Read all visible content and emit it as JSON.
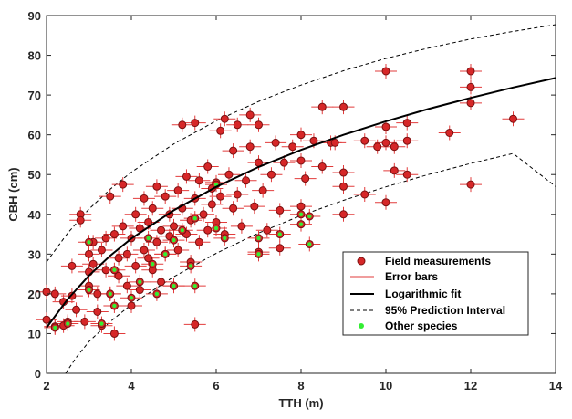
{
  "chart_data": {
    "type": "scatter",
    "xlabel": "TTH (m)",
    "ylabel": "CBH (cm)",
    "xlim": [
      2,
      14
    ],
    "ylim": [
      0,
      90
    ],
    "xticks": [
      "2",
      "4",
      "6",
      "8",
      "10",
      "12",
      "14"
    ],
    "yticks": [
      "0",
      "10",
      "20",
      "30",
      "40",
      "50",
      "60",
      "70",
      "80",
      "90"
    ],
    "grid": false,
    "legend_position": "bottom-right",
    "colors": {
      "marker": "#d62728",
      "marker_edge": "#7a1010",
      "error_bar": "#e23b3b",
      "fit": "#000000",
      "interval": "#000000",
      "other": "#33ee33"
    },
    "legend": [
      {
        "key": "field",
        "label": "Field measurements"
      },
      {
        "key": "error",
        "label": "Error bars"
      },
      {
        "key": "fit",
        "label": "Logarithmic fit"
      },
      {
        "key": "pi",
        "label": "95% Prediction Interval"
      },
      {
        "key": "other",
        "label": "Other species"
      }
    ],
    "fit": {
      "model": "logarithmic",
      "x": [
        2,
        2.5,
        3,
        3.5,
        4,
        5,
        6,
        7,
        8,
        9,
        10,
        11,
        12,
        13,
        14
      ],
      "y": [
        11.5,
        18.7,
        24.6,
        29.6,
        33.9,
        41.0,
        46.9,
        51.9,
        56.2,
        60.0,
        63.4,
        66.5,
        69.3,
        71.9,
        74.3
      ]
    },
    "prediction_upper": {
      "x": [
        2,
        2.5,
        3,
        3.5,
        4,
        5,
        6,
        7,
        8,
        9,
        10,
        11,
        12,
        13,
        14
      ],
      "y": [
        28.0,
        35.3,
        41.3,
        46.3,
        50.6,
        57.7,
        63.5,
        68.4,
        72.5,
        76.1,
        79.2,
        81.8,
        84.1,
        86.0,
        87.7
      ]
    },
    "prediction_lower": {
      "x": [
        2.45,
        2.7,
        3,
        3.5,
        4,
        5,
        6,
        7,
        8,
        9,
        10,
        11,
        12,
        13,
        14
      ],
      "y": [
        0,
        4.0,
        8.0,
        13.0,
        17.3,
        24.3,
        30.2,
        35.3,
        39.7,
        43.5,
        46.9,
        50.0,
        52.8,
        55.3,
        47.0
      ]
    },
    "series": [
      {
        "name": "Field measurements",
        "points": [
          [
            2.0,
            20.5
          ],
          [
            2.0,
            13.5
          ],
          [
            2.2,
            11.8
          ],
          [
            2.2,
            20.0
          ],
          [
            2.4,
            18.0
          ],
          [
            2.4,
            12.0
          ],
          [
            2.5,
            13.0
          ],
          [
            2.6,
            19.5
          ],
          [
            2.6,
            27.0
          ],
          [
            2.7,
            16.0
          ],
          [
            2.8,
            40.0
          ],
          [
            2.8,
            38.5
          ],
          [
            2.9,
            13.0
          ],
          [
            3.0,
            22.0
          ],
          [
            3.0,
            25.5
          ],
          [
            3.0,
            30.0
          ],
          [
            3.1,
            33.0
          ],
          [
            3.1,
            27.5
          ],
          [
            3.2,
            15.5
          ],
          [
            3.2,
            20.0
          ],
          [
            3.3,
            12.0
          ],
          [
            3.3,
            31.0
          ],
          [
            3.4,
            34.0
          ],
          [
            3.4,
            26.0
          ],
          [
            3.5,
            44.5
          ],
          [
            3.5,
            20.0
          ],
          [
            3.6,
            10.0
          ],
          [
            3.6,
            35.0
          ],
          [
            3.7,
            24.5
          ],
          [
            3.7,
            29.0
          ],
          [
            3.8,
            47.5
          ],
          [
            3.8,
            37.0
          ],
          [
            3.9,
            30.0
          ],
          [
            3.9,
            22.0
          ],
          [
            4.0,
            17.0
          ],
          [
            4.0,
            34.0
          ],
          [
            4.1,
            40.0
          ],
          [
            4.1,
            27.0
          ],
          [
            4.2,
            36.5
          ],
          [
            4.2,
            21.0
          ],
          [
            4.3,
            31.0
          ],
          [
            4.3,
            44.0
          ],
          [
            4.4,
            29.0
          ],
          [
            4.4,
            38.0
          ],
          [
            4.5,
            26.0
          ],
          [
            4.5,
            41.5
          ],
          [
            4.6,
            33.0
          ],
          [
            4.6,
            47.0
          ],
          [
            4.7,
            23.0
          ],
          [
            4.7,
            36.0
          ],
          [
            4.8,
            30.0
          ],
          [
            4.8,
            44.5
          ],
          [
            4.9,
            34.5
          ],
          [
            4.9,
            40.0
          ],
          [
            5.0,
            22.0
          ],
          [
            5.0,
            37.0
          ],
          [
            5.1,
            46.0
          ],
          [
            5.1,
            31.0
          ],
          [
            5.2,
            62.5
          ],
          [
            5.2,
            41.5
          ],
          [
            5.3,
            35.0
          ],
          [
            5.3,
            49.5
          ],
          [
            5.4,
            28.0
          ],
          [
            5.4,
            38.5
          ],
          [
            5.5,
            63.0
          ],
          [
            5.5,
            44.0
          ],
          [
            5.5,
            12.3
          ],
          [
            5.6,
            33.0
          ],
          [
            5.6,
            48.5
          ],
          [
            5.7,
            40.0
          ],
          [
            5.8,
            36.0
          ],
          [
            5.8,
            52.0
          ],
          [
            5.9,
            42.5
          ],
          [
            5.9,
            46.5
          ],
          [
            6.0,
            38.0
          ],
          [
            6.0,
            48.0
          ],
          [
            6.1,
            61.0
          ],
          [
            6.1,
            44.5
          ],
          [
            6.2,
            64.0
          ],
          [
            6.2,
            35.0
          ],
          [
            6.3,
            50.0
          ],
          [
            6.4,
            41.5
          ],
          [
            6.4,
            56.0
          ],
          [
            6.5,
            62.5
          ],
          [
            6.5,
            45.0
          ],
          [
            6.6,
            37.0
          ],
          [
            6.7,
            48.5
          ],
          [
            6.8,
            57.0
          ],
          [
            6.8,
            65.0
          ],
          [
            6.9,
            42.0
          ],
          [
            7.0,
            62.5
          ],
          [
            7.0,
            53.0
          ],
          [
            7.0,
            30.5
          ],
          [
            7.1,
            46.0
          ],
          [
            7.2,
            36.0
          ],
          [
            7.3,
            50.0
          ],
          [
            7.4,
            58.0
          ],
          [
            7.5,
            41.0
          ],
          [
            7.5,
            31.5
          ],
          [
            7.6,
            53.0
          ],
          [
            7.8,
            57.0
          ],
          [
            8.0,
            53.5
          ],
          [
            8.0,
            60.0
          ],
          [
            8.0,
            42.0
          ],
          [
            8.1,
            49.0
          ],
          [
            8.3,
            58.5
          ],
          [
            8.5,
            67.0
          ],
          [
            8.5,
            52.0
          ],
          [
            8.7,
            58.0
          ],
          [
            8.8,
            58.0
          ],
          [
            9.0,
            67.0
          ],
          [
            9.0,
            50.5
          ],
          [
            9.0,
            47.0
          ],
          [
            9.0,
            40.0
          ],
          [
            9.5,
            58.5
          ],
          [
            9.5,
            45.0
          ],
          [
            9.8,
            57.0
          ],
          [
            10.0,
            76.0
          ],
          [
            10.0,
            62.0
          ],
          [
            10.0,
            58.0
          ],
          [
            10.0,
            43.0
          ],
          [
            10.2,
            57.0
          ],
          [
            10.2,
            51.0
          ],
          [
            10.5,
            63.0
          ],
          [
            10.5,
            58.5
          ],
          [
            10.5,
            50.0
          ],
          [
            11.5,
            60.5
          ],
          [
            12.0,
            76.0
          ],
          [
            12.0,
            72.0
          ],
          [
            12.0,
            68.0
          ],
          [
            12.0,
            47.5
          ],
          [
            13.0,
            64.0
          ]
        ]
      },
      {
        "name": "Other species",
        "points": [
          [
            2.2,
            11.5
          ],
          [
            2.5,
            12.5
          ],
          [
            3.0,
            21.0
          ],
          [
            3.0,
            33.0
          ],
          [
            3.3,
            12.5
          ],
          [
            3.5,
            20.0
          ],
          [
            3.6,
            17.0
          ],
          [
            3.6,
            26.0
          ],
          [
            4.0,
            19.0
          ],
          [
            4.2,
            23.0
          ],
          [
            4.4,
            34.0
          ],
          [
            4.5,
            27.5
          ],
          [
            4.6,
            20.0
          ],
          [
            4.8,
            30.0
          ],
          [
            5.0,
            22.0
          ],
          [
            5.0,
            33.5
          ],
          [
            5.2,
            36.0
          ],
          [
            5.4,
            27.0
          ],
          [
            5.5,
            22.0
          ],
          [
            5.5,
            39.0
          ],
          [
            6.0,
            36.5
          ],
          [
            6.0,
            47.5
          ],
          [
            6.2,
            34.0
          ],
          [
            7.0,
            34.0
          ],
          [
            7.0,
            30.0
          ],
          [
            7.5,
            35.0
          ],
          [
            8.0,
            40.0
          ],
          [
            8.0,
            37.5
          ],
          [
            8.2,
            39.5
          ],
          [
            8.2,
            32.5
          ]
        ]
      }
    ]
  }
}
